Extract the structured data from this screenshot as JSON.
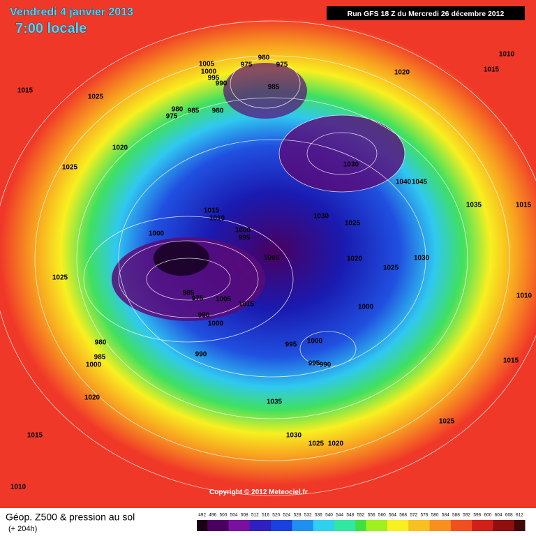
{
  "header": {
    "date": "Vendredi 4 janvier 2013",
    "time": "7:00 locale",
    "run": "Run GFS 18 Z du Mercredi 26 décembre 2012"
  },
  "map": {
    "isobar_labels": [
      "1005",
      "1000",
      "995",
      "990",
      "975",
      "980",
      "975",
      "985",
      "980",
      "975",
      "985",
      "980",
      "1015",
      "1025",
      "1020",
      "1025",
      "1020",
      "1010",
      "1015",
      "1030",
      "1040",
      "1045",
      "1035",
      "1015",
      "1030",
      "1025",
      "1015",
      "1010",
      "1000",
      "995",
      "1000",
      "1000",
      "1020",
      "1025",
      "1030",
      "1010",
      "1025",
      "985",
      "975",
      "1005",
      "1015",
      "1000",
      "990",
      "1000",
      "980",
      "985",
      "1000",
      "990",
      "995",
      "1000",
      "995",
      "990",
      "1015",
      "1020",
      "1035",
      "1015",
      "1030",
      "1025",
      "1020",
      "1025",
      "1010"
    ],
    "copyright": "Copyright © 2012 Meteociel.fr"
  },
  "footer": {
    "title": "Géop. Z500 & pression au sol",
    "lead": "(+ 204h)",
    "colorbar": [
      "492",
      "496",
      "500",
      "504",
      "508",
      "512",
      "516",
      "520",
      "524",
      "528",
      "532",
      "536",
      "540",
      "544",
      "548",
      "552",
      "556",
      "560",
      "564",
      "568",
      "572",
      "576",
      "580",
      "584",
      "588",
      "592",
      "596",
      "600",
      "604",
      "608",
      "612"
    ]
  }
}
